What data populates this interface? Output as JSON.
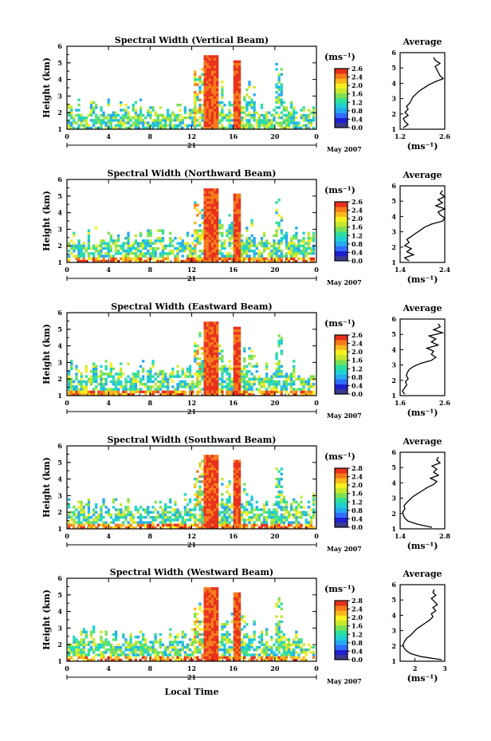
{
  "chart_data": [
    {
      "type": "heatmap",
      "title": "Spectral Width (Vertical Beam)",
      "ylabel": "Height (km)",
      "y_ticks": [
        "1",
        "2",
        "3",
        "4",
        "5",
        "6"
      ],
      "ylim": [
        1,
        6
      ],
      "x_ticks": [
        "0",
        "4",
        "8",
        "12",
        "16",
        "20",
        "0"
      ],
      "xlim": [
        0,
        24
      ],
      "day_label": "21",
      "date_label": "May 2007",
      "colorbar": {
        "unit": "(ms⁻¹)",
        "ticks": [
          "2.6",
          "2.4",
          "2.0",
          "1.6",
          "1.2",
          "0.8",
          "0.4",
          "0.0"
        ]
      },
      "profile": {
        "title": "Average",
        "xlabel": "(ms⁻¹)",
        "x_ticks": [
          "1.2",
          "2.6"
        ],
        "xlim": [
          1.2,
          2.6
        ],
        "heights": [
          1.1,
          1.3,
          1.5,
          1.7,
          1.9,
          2.1,
          2.3,
          2.5,
          2.7,
          2.9,
          3.1,
          3.3,
          3.5,
          3.7,
          3.9,
          4.1,
          4.3,
          4.5,
          4.7,
          4.9,
          5.1,
          5.3,
          5.5,
          5.7
        ],
        "values": [
          1.3,
          1.45,
          1.35,
          1.3,
          1.45,
          1.35,
          1.45,
          1.4,
          1.5,
          1.55,
          1.6,
          1.7,
          1.8,
          1.95,
          2.1,
          2.3,
          2.55,
          2.45,
          2.4,
          2.35,
          2.3,
          2.45,
          2.3,
          2.25
        ]
      }
    },
    {
      "type": "heatmap",
      "title": "Spectral Width (Northward Beam)",
      "ylabel": "Height (km)",
      "y_ticks": [
        "1",
        "2",
        "3",
        "4",
        "5",
        "6"
      ],
      "ylim": [
        1,
        6
      ],
      "x_ticks": [
        "0",
        "4",
        "8",
        "12",
        "16",
        "20",
        "0"
      ],
      "xlim": [
        0,
        24
      ],
      "day_label": "21",
      "date_label": "May 2007",
      "colorbar": {
        "unit": "(ms⁻¹)",
        "ticks": [
          "2.6",
          "2.4",
          "2.0",
          "1.6",
          "1.2",
          "0.8",
          "0.4",
          "0.0"
        ]
      },
      "profile": {
        "title": "Average",
        "xlabel": "(ms⁻¹)",
        "x_ticks": [
          "1.4",
          "2.4"
        ],
        "xlim": [
          1.4,
          2.4
        ],
        "heights": [
          1.1,
          1.3,
          1.5,
          1.7,
          1.9,
          2.1,
          2.3,
          2.5,
          2.7,
          2.9,
          3.1,
          3.3,
          3.5,
          3.7,
          3.9,
          4.1,
          4.3,
          4.5,
          4.7,
          4.9,
          5.1,
          5.3,
          5.5,
          5.7
        ],
        "values": [
          1.6,
          1.5,
          1.7,
          1.55,
          1.65,
          1.5,
          1.6,
          1.55,
          1.65,
          1.75,
          1.85,
          1.95,
          2.1,
          2.35,
          2.4,
          2.3,
          2.25,
          2.4,
          2.2,
          2.35,
          2.25,
          2.4,
          2.3,
          2.35
        ]
      }
    },
    {
      "type": "heatmap",
      "title": "Spectral Width (Eastward Beam)",
      "ylabel": "Height (km)",
      "y_ticks": [
        "1",
        "2",
        "3",
        "4",
        "5",
        "6"
      ],
      "ylim": [
        1,
        6
      ],
      "x_ticks": [
        "0",
        "4",
        "8",
        "12",
        "16",
        "20",
        "0"
      ],
      "xlim": [
        0,
        24
      ],
      "day_label": "21",
      "date_label": "May 2007",
      "colorbar": {
        "unit": "(ms⁻¹)",
        "ticks": [
          "2.6",
          "2.4",
          "2.0",
          "1.6",
          "1.2",
          "0.8",
          "0.4",
          "0.0"
        ]
      },
      "profile": {
        "title": "Average",
        "xlabel": "(ms⁻¹)",
        "x_ticks": [
          "1.6",
          "2.6"
        ],
        "xlim": [
          1.6,
          2.6
        ],
        "heights": [
          1.1,
          1.3,
          1.5,
          1.7,
          1.9,
          2.1,
          2.3,
          2.5,
          2.7,
          2.9,
          3.1,
          3.3,
          3.5,
          3.7,
          3.9,
          4.1,
          4.3,
          4.5,
          4.7,
          4.9,
          5.1,
          5.3,
          5.5,
          5.7
        ],
        "values": [
          1.7,
          1.65,
          1.7,
          1.75,
          1.72,
          1.78,
          1.74,
          1.76,
          1.8,
          1.9,
          2.05,
          2.3,
          2.4,
          2.3,
          2.35,
          2.2,
          2.45,
          2.3,
          2.4,
          2.25,
          2.55,
          2.35,
          2.5,
          2.45
        ]
      }
    },
    {
      "type": "heatmap",
      "title": "Spectral Width (Southward Beam)",
      "ylabel": "Height (km)",
      "y_ticks": [
        "1",
        "2",
        "3",
        "4",
        "5",
        "6"
      ],
      "ylim": [
        1,
        6
      ],
      "x_ticks": [
        "0",
        "4",
        "8",
        "12",
        "16",
        "20",
        "0"
      ],
      "xlim": [
        0,
        24
      ],
      "day_label": "21",
      "date_label": "May 2007",
      "colorbar": {
        "unit": "(ms⁻¹)",
        "ticks": [
          "2.8",
          "2.4",
          "2.0",
          "1.6",
          "1.2",
          "0.8",
          "0.4",
          "0.0"
        ]
      },
      "profile": {
        "title": "Average",
        "xlabel": "(ms⁻¹)",
        "x_ticks": [
          "1.4",
          "2.8"
        ],
        "xlim": [
          1.4,
          2.8
        ],
        "heights": [
          1.1,
          1.3,
          1.5,
          1.7,
          1.9,
          2.1,
          2.3,
          2.5,
          2.7,
          2.9,
          3.1,
          3.3,
          3.5,
          3.7,
          3.9,
          4.1,
          4.3,
          4.5,
          4.7,
          4.9,
          5.1,
          5.3,
          5.5,
          5.7
        ],
        "values": [
          2.4,
          1.95,
          1.65,
          1.55,
          1.5,
          1.48,
          1.55,
          1.52,
          1.6,
          1.7,
          1.8,
          1.95,
          2.1,
          2.25,
          2.45,
          2.55,
          2.35,
          2.6,
          2.45,
          2.55,
          2.4,
          2.65,
          2.55,
          2.6
        ]
      }
    },
    {
      "type": "heatmap",
      "title": "Spectral Width (Westward Beam)",
      "ylabel": "Height (km)",
      "y_ticks": [
        "1",
        "2",
        "3",
        "4",
        "5",
        "6"
      ],
      "ylim": [
        1,
        6
      ],
      "x_ticks": [
        "0",
        "4",
        "8",
        "12",
        "16",
        "20",
        "0"
      ],
      "xlim": [
        0,
        24
      ],
      "day_label": "21",
      "date_label": "May 2007",
      "xlabel": "Local Time",
      "colorbar": {
        "unit": "(ms⁻¹)",
        "ticks": [
          "2.8",
          "2.4",
          "2.0",
          "1.6",
          "1.2",
          "0.8",
          "0.4",
          "0.0"
        ]
      },
      "profile": {
        "title": "Average",
        "xlabel": "(ms⁻¹)",
        "x_ticks": [
          "2",
          "3"
        ],
        "xlim": [
          1.5,
          3.0
        ],
        "heights": [
          1.1,
          1.3,
          1.5,
          1.7,
          1.9,
          2.1,
          2.3,
          2.5,
          2.7,
          2.9,
          3.1,
          3.3,
          3.5,
          3.7,
          3.9,
          4.1,
          4.3,
          4.5,
          4.7,
          4.9,
          5.1,
          5.3,
          5.5,
          5.7
        ],
        "values": [
          2.9,
          2.2,
          1.85,
          1.7,
          1.62,
          1.6,
          1.65,
          1.72,
          1.85,
          1.95,
          2.05,
          2.2,
          2.35,
          2.5,
          2.6,
          2.55,
          2.7,
          2.6,
          2.75,
          2.65,
          2.55,
          2.7,
          2.6,
          2.65
        ]
      }
    }
  ],
  "colormap": [
    "#3a3a8c",
    "#1f1fd0",
    "#2f6dff",
    "#27aaf0",
    "#1ed2d2",
    "#30e09a",
    "#7de052",
    "#c8e82e",
    "#f6f01e",
    "#f8b81c",
    "#f47a1a",
    "#e8311c"
  ]
}
